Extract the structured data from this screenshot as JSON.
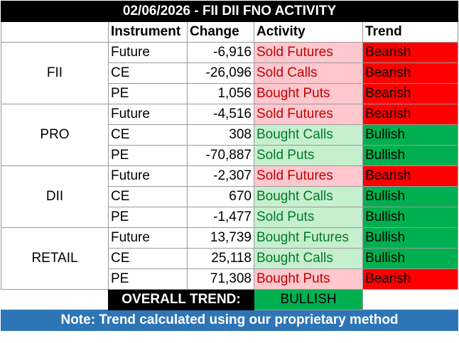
{
  "title": "02/06/2026 - FII DII FNO ACTIVITY",
  "headers": [
    "Instrument",
    "Change",
    "Activity",
    "Trend"
  ],
  "groups": [
    {
      "party": "FII",
      "rows": [
        {
          "instrument": "Future",
          "change": "-6,916",
          "activity": "Sold Futures",
          "trend": "Bearish"
        },
        {
          "instrument": "CE",
          "change": "-26,096",
          "activity": "Sold Calls",
          "trend": "Bearish"
        },
        {
          "instrument": "PE",
          "change": "1,056",
          "activity": "Bought Puts",
          "trend": "Bearish"
        }
      ]
    },
    {
      "party": "PRO",
      "rows": [
        {
          "instrument": "Future",
          "change": "-4,516",
          "activity": "Sold Futures",
          "trend": "Bearish"
        },
        {
          "instrument": "CE",
          "change": "308",
          "activity": "Bought Calls",
          "trend": "Bullish"
        },
        {
          "instrument": "PE",
          "change": "-70,887",
          "activity": "Sold Puts",
          "trend": "Bullish"
        }
      ]
    },
    {
      "party": "DII",
      "rows": [
        {
          "instrument": "Future",
          "change": "-2,307",
          "activity": "Sold Futures",
          "trend": "Bearish"
        },
        {
          "instrument": "CE",
          "change": "670",
          "activity": "Bought Calls",
          "trend": "Bullish"
        },
        {
          "instrument": "PE",
          "change": "-1,477",
          "activity": "Sold Puts",
          "trend": "Bullish"
        }
      ]
    },
    {
      "party": "RETAIL",
      "rows": [
        {
          "instrument": "Future",
          "change": "13,739",
          "activity": "Bought Futures",
          "trend": "Bullish"
        },
        {
          "instrument": "CE",
          "change": "25,118",
          "activity": "Bought Calls",
          "trend": "Bullish"
        },
        {
          "instrument": "PE",
          "change": "71,308",
          "activity": "Bought Puts",
          "trend": "Bearish"
        }
      ]
    }
  ],
  "overall": {
    "label": "OVERALL TREND:",
    "value": "BULLISH"
  },
  "note": "Note: Trend calculated using our proprietary method",
  "colors": {
    "bearish_trend": "#ff0000",
    "bullish_trend": "#00b050",
    "bearish_activity_bg": "#ffc7ce",
    "bullish_activity_bg": "#c6efce",
    "note_bg": "#2e75b6"
  }
}
